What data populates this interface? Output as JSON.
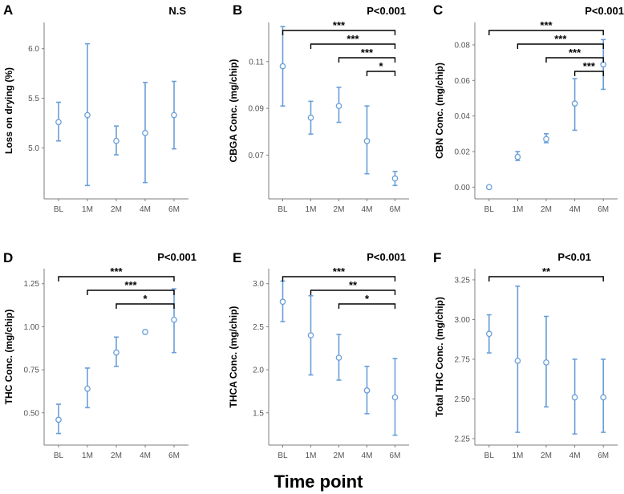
{
  "figure": {
    "xtitle": "Time point"
  },
  "chart_data": [
    {
      "type": "scatter",
      "panel": "A",
      "pvalue": "N.S",
      "ylabel": "Loss on drying (%)",
      "categories": [
        "BL",
        "1M",
        "2M",
        "4M",
        "6M"
      ],
      "ylim": [
        4.55,
        6.2
      ],
      "yticks": [
        "5.0",
        "5.5",
        "6.0"
      ],
      "mean": [
        5.26,
        5.33,
        5.07,
        5.15,
        5.33
      ],
      "lower": [
        5.07,
        4.62,
        4.93,
        4.65,
        4.99
      ],
      "upper": [
        5.46,
        6.05,
        5.22,
        5.66,
        5.67
      ],
      "brackets": []
    },
    {
      "type": "scatter",
      "panel": "B",
      "pvalue": "P<0.001",
      "ylabel": "CBGA Conc. (mg/chip)",
      "categories": [
        "BL",
        "1M",
        "2M",
        "4M",
        "6M"
      ],
      "ylim": [
        0.054,
        0.124
      ],
      "yticks": [
        "0.07",
        "0.09",
        "0.11"
      ],
      "mean": [
        0.108,
        0.086,
        0.091,
        0.076,
        0.06
      ],
      "lower": [
        0.091,
        0.079,
        0.084,
        0.062,
        0.057
      ],
      "upper": [
        0.125,
        0.093,
        0.099,
        0.091,
        0.063
      ],
      "brackets": [
        {
          "from": 0,
          "to": 4,
          "label": "***"
        },
        {
          "from": 1,
          "to": 4,
          "label": "***"
        },
        {
          "from": 2,
          "to": 4,
          "label": "***"
        },
        {
          "from": 3,
          "to": 4,
          "label": "*"
        }
      ]
    },
    {
      "type": "scatter",
      "panel": "C",
      "pvalue": "P<0.001",
      "ylabel": "CBN Conc. (mg/chip)",
      "categories": [
        "BL",
        "1M",
        "2M",
        "4M",
        "6M"
      ],
      "ylim": [
        -0.003,
        0.089
      ],
      "yticks": [
        "0.00",
        "0.02",
        "0.04",
        "0.06",
        "0.08"
      ],
      "mean": [
        0.0,
        0.017,
        0.027,
        0.047,
        0.069
      ],
      "lower": [
        0.0,
        0.015,
        0.025,
        0.032,
        0.055
      ],
      "upper": [
        0.0,
        0.02,
        0.03,
        0.061,
        0.083
      ],
      "brackets": [
        {
          "from": 0,
          "to": 4,
          "label": "***"
        },
        {
          "from": 1,
          "to": 4,
          "label": "***"
        },
        {
          "from": 2,
          "to": 4,
          "label": "***"
        },
        {
          "from": 3,
          "to": 4,
          "label": "***"
        }
      ]
    },
    {
      "type": "scatter",
      "panel": "D",
      "pvalue": "P<0.001",
      "ylabel": "THC Conc. (mg/chip)",
      "categories": [
        "BL",
        "1M",
        "2M",
        "4M",
        "6M"
      ],
      "ylim": [
        0.35,
        1.3
      ],
      "yticks": [
        "0.50",
        "0.75",
        "1.00",
        "1.25"
      ],
      "mean": [
        0.46,
        0.64,
        0.85,
        0.97,
        1.04
      ],
      "lower": [
        0.38,
        0.53,
        0.77,
        0.96,
        0.85
      ],
      "upper": [
        0.55,
        0.76,
        0.94,
        0.98,
        1.22
      ],
      "brackets": [
        {
          "from": 0,
          "to": 4,
          "label": "***"
        },
        {
          "from": 1,
          "to": 4,
          "label": "***"
        },
        {
          "from": 2,
          "to": 4,
          "label": "*"
        }
      ]
    },
    {
      "type": "scatter",
      "panel": "E",
      "pvalue": "P<0.001",
      "ylabel": "THCA Conc. (mg/chip)",
      "categories": [
        "BL",
        "1M",
        "2M",
        "4M",
        "6M"
      ],
      "ylim": [
        1.2,
        3.1
      ],
      "yticks": [
        "1.5",
        "2.0",
        "2.5",
        "3.0"
      ],
      "mean": [
        2.79,
        2.4,
        2.14,
        1.76,
        1.68
      ],
      "lower": [
        2.56,
        1.94,
        1.88,
        1.49,
        1.24
      ],
      "upper": [
        3.03,
        2.86,
        2.41,
        2.04,
        2.13
      ],
      "brackets": [
        {
          "from": 0,
          "to": 4,
          "label": "***"
        },
        {
          "from": 1,
          "to": 4,
          "label": "**"
        },
        {
          "from": 2,
          "to": 4,
          "label": "*"
        }
      ]
    },
    {
      "type": "scatter",
      "panel": "F",
      "pvalue": "P<0.01",
      "ylabel": "Total THC Conc. (mg/chip)",
      "categories": [
        "BL",
        "1M",
        "2M",
        "4M",
        "6M"
      ],
      "ylim": [
        2.25,
        3.28
      ],
      "yticks": [
        "2.25",
        "2.50",
        "2.75",
        "3.00",
        "3.25"
      ],
      "mean": [
        2.91,
        2.74,
        2.73,
        2.51,
        2.51
      ],
      "lower": [
        2.79,
        2.29,
        2.45,
        2.28,
        2.29
      ],
      "upper": [
        3.03,
        3.21,
        3.02,
        2.75,
        2.75
      ],
      "brackets": [
        {
          "from": 0,
          "to": 4,
          "label": "**"
        }
      ]
    }
  ]
}
